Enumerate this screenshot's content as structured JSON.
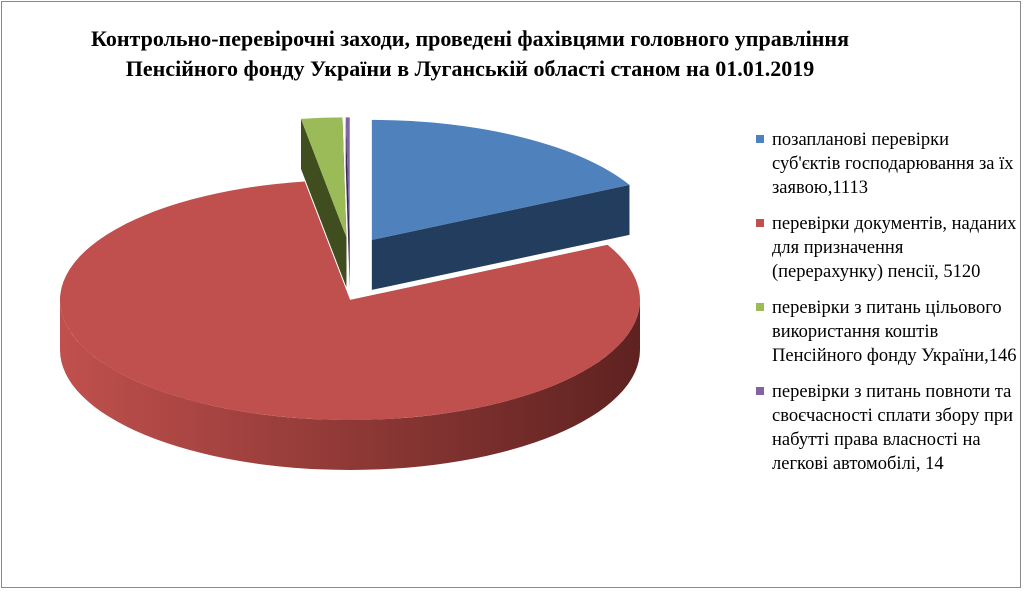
{
  "chart_data": {
    "type": "pie",
    "title": "Контрольно-перевірочні заходи, проведені фахівцями головного управління Пенсійного фонду України в Луганській області станом на 01.01.2019",
    "legend_position": "right",
    "series": [
      {
        "label": "позапланові перевірки суб'єктів господарювання за їх заявою,1113",
        "value": 1113,
        "color": "#4F81BD",
        "dark": "#233D5E"
      },
      {
        "label": "перевірки документів, наданих для призначення (перерахунку) пенсії,  5120",
        "value": 5120,
        "color": "#C0504D",
        "dark": "#5E2220"
      },
      {
        "label": "перевірки з питань цільового використання коштів Пенсійного фонду України,146",
        "value": 146,
        "color": "#9BBB59",
        "dark": "#3F4D1F"
      },
      {
        "label": "перевірки з питань повноти та своєчасності сплати збору при набутті права власності на легкові автомобілі, 14",
        "value": 14,
        "color": "#8064A2",
        "dark": "#3A2A4F"
      }
    ]
  }
}
